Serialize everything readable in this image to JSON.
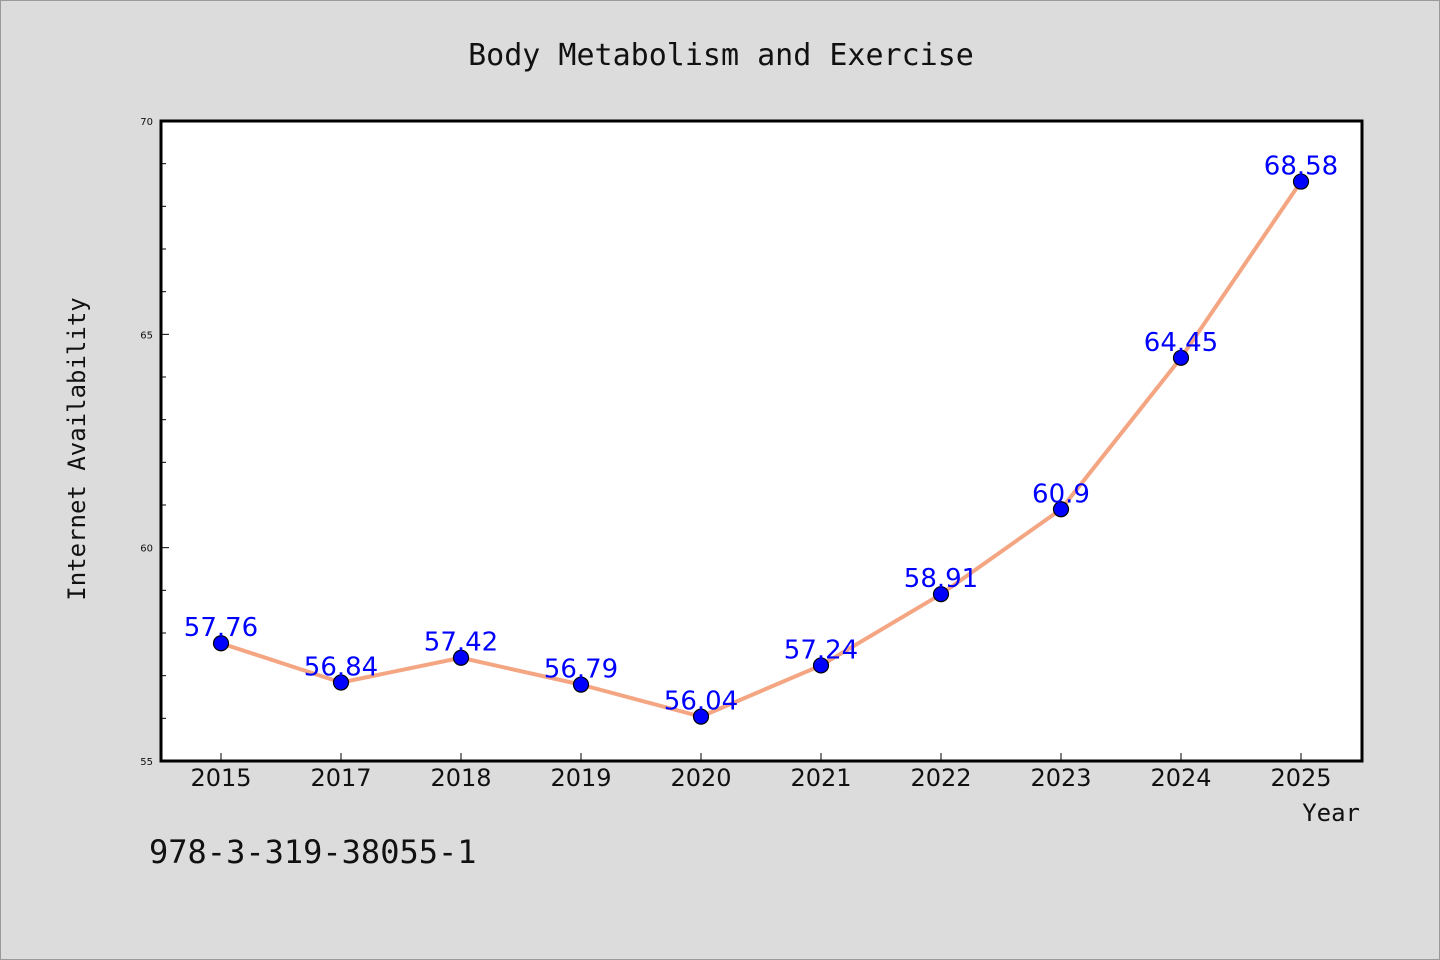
{
  "chart_data": {
    "type": "line",
    "title": "Body Metabolism and Exercise",
    "xlabel": "Year",
    "ylabel": "Internet Availability",
    "categories": [
      "2015",
      "2017",
      "2018",
      "2019",
      "2020",
      "2021",
      "2022",
      "2023",
      "2024",
      "2025"
    ],
    "series": [
      {
        "values": [
          57.76,
          56.84,
          57.42,
          56.79,
          56.04,
          57.24,
          58.91,
          60.9,
          64.45,
          68.58
        ],
        "data_labels": [
          "57.76",
          "56.84",
          "57.42",
          "56.79",
          "56.04",
          "57.24",
          "58.91",
          "60.9",
          "64.45",
          "68.58"
        ]
      }
    ],
    "ylim": [
      55,
      70
    ],
    "yticks": [
      55,
      60,
      65,
      70
    ],
    "y_minor_step": 1,
    "grid": false,
    "legend": "none",
    "colors": {
      "line": "#f4a582",
      "marker": "#0000ff",
      "marker_edge": "#000000",
      "data_label": "#0000ff",
      "background": "#dcdcdc",
      "plot_area": "#ffffff"
    }
  },
  "footnote": "978-3-319-38055-1"
}
